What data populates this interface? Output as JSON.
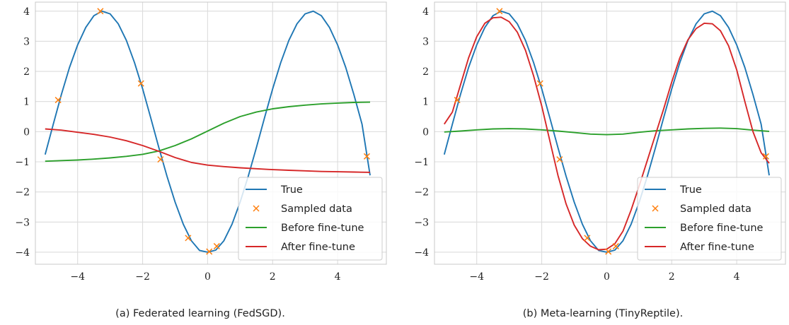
{
  "chart_data": [
    {
      "type": "line",
      "caption": "(a) Federated learning (FedSGD).",
      "xlim": [
        -5.3,
        5.5
      ],
      "ylim": [
        -4.4,
        4.3
      ],
      "xticks": [
        -4,
        -2,
        0,
        2,
        4
      ],
      "yticks": [
        -4,
        -3,
        -2,
        -1,
        0,
        1,
        2,
        3,
        4
      ],
      "xtick_labels": [
        "−4",
        "−2",
        "0",
        "2",
        "4"
      ],
      "ytick_labels": [
        "−4",
        "−3",
        "−2",
        "−1",
        "0",
        "1",
        "2",
        "3",
        "4"
      ],
      "grid": true,
      "legend_position": "lower-right",
      "series": [
        {
          "name": "True",
          "kind": "line",
          "color": "#1f77b4",
          "x": [
            -5.0,
            -4.75,
            -4.5,
            -4.25,
            -4.0,
            -3.75,
            -3.5,
            -3.25,
            -3.0,
            -2.75,
            -2.5,
            -2.25,
            -2.0,
            -1.75,
            -1.5,
            -1.25,
            -1.0,
            -0.75,
            -0.5,
            -0.25,
            0.0,
            0.25,
            0.5,
            0.75,
            1.0,
            1.25,
            1.5,
            1.75,
            2.0,
            2.25,
            2.5,
            2.75,
            3.0,
            3.25,
            3.5,
            3.75,
            4.0,
            4.25,
            4.5,
            4.75,
            5.0
          ],
          "y": [
            -0.76,
            0.25,
            1.23,
            2.13,
            2.88,
            3.46,
            3.85,
            4.0,
            3.91,
            3.58,
            3.03,
            2.29,
            1.42,
            0.46,
            -0.53,
            -1.48,
            -2.34,
            -3.07,
            -3.62,
            -3.94,
            -4.0,
            -3.93,
            -3.62,
            -3.07,
            -2.34,
            -1.48,
            -0.53,
            0.46,
            1.42,
            2.29,
            3.03,
            3.58,
            3.91,
            4.0,
            3.85,
            3.46,
            2.88,
            2.13,
            1.23,
            0.25,
            -1.45
          ]
        },
        {
          "name": "Sampled data",
          "kind": "markers",
          "color": "#ff7f0e",
          "x": [
            -4.6,
            -3.3,
            -2.05,
            -1.45,
            -0.6,
            0.05,
            0.28,
            4.9
          ],
          "y": [
            1.05,
            4.0,
            1.6,
            -0.92,
            -3.53,
            -3.98,
            -3.8,
            -0.82
          ]
        },
        {
          "name": "Before fine-tune",
          "kind": "line",
          "color": "#2ca02c",
          "x": [
            -5.0,
            -4.5,
            -4.0,
            -3.5,
            -3.0,
            -2.5,
            -2.0,
            -1.5,
            -1.0,
            -0.5,
            0.0,
            0.5,
            1.0,
            1.5,
            2.0,
            2.5,
            3.0,
            3.5,
            4.0,
            4.5,
            5.0
          ],
          "y": [
            -0.98,
            -0.96,
            -0.94,
            -0.91,
            -0.87,
            -0.82,
            -0.75,
            -0.64,
            -0.46,
            -0.24,
            0.02,
            0.28,
            0.5,
            0.65,
            0.76,
            0.83,
            0.88,
            0.92,
            0.95,
            0.97,
            0.98
          ]
        },
        {
          "name": "After fine-tune",
          "kind": "line",
          "color": "#d62728",
          "x": [
            -5.0,
            -4.5,
            -4.0,
            -3.5,
            -3.0,
            -2.5,
            -2.0,
            -1.5,
            -1.0,
            -0.5,
            0.0,
            0.5,
            1.0,
            1.5,
            2.0,
            2.5,
            3.0,
            3.5,
            4.0,
            4.5,
            5.0
          ],
          "y": [
            0.09,
            0.05,
            -0.02,
            -0.09,
            -0.18,
            -0.3,
            -0.46,
            -0.65,
            -0.86,
            -1.02,
            -1.11,
            -1.16,
            -1.2,
            -1.23,
            -1.26,
            -1.28,
            -1.3,
            -1.32,
            -1.33,
            -1.34,
            -1.35
          ]
        }
      ]
    },
    {
      "type": "line",
      "caption": "(b) Meta-learning (TinyReptile).",
      "xlim": [
        -5.3,
        5.5
      ],
      "ylim": [
        -4.4,
        4.3
      ],
      "xticks": [
        -4,
        -2,
        0,
        2,
        4
      ],
      "yticks": [
        -4,
        -3,
        -2,
        -1,
        0,
        1,
        2,
        3,
        4
      ],
      "xtick_labels": [
        "−4",
        "−2",
        "0",
        "2",
        "4"
      ],
      "ytick_labels": [
        "−4",
        "−3",
        "−2",
        "−1",
        "0",
        "1",
        "2",
        "3",
        "4"
      ],
      "grid": true,
      "legend_position": "lower-right",
      "series": [
        {
          "name": "True",
          "kind": "line",
          "color": "#1f77b4",
          "x": [
            -5.0,
            -4.75,
            -4.5,
            -4.25,
            -4.0,
            -3.75,
            -3.5,
            -3.25,
            -3.0,
            -2.75,
            -2.5,
            -2.25,
            -2.0,
            -1.75,
            -1.5,
            -1.25,
            -1.0,
            -0.75,
            -0.5,
            -0.25,
            0.0,
            0.25,
            0.5,
            0.75,
            1.0,
            1.25,
            1.5,
            1.75,
            2.0,
            2.25,
            2.5,
            2.75,
            3.0,
            3.25,
            3.5,
            3.75,
            4.0,
            4.25,
            4.5,
            4.75,
            5.0
          ],
          "y": [
            -0.76,
            0.25,
            1.23,
            2.13,
            2.88,
            3.46,
            3.85,
            4.0,
            3.91,
            3.58,
            3.03,
            2.29,
            1.42,
            0.46,
            -0.53,
            -1.48,
            -2.34,
            -3.07,
            -3.62,
            -3.94,
            -4.0,
            -3.93,
            -3.62,
            -3.07,
            -2.34,
            -1.48,
            -0.53,
            0.46,
            1.42,
            2.29,
            3.03,
            3.58,
            3.91,
            4.0,
            3.85,
            3.46,
            2.88,
            2.13,
            1.23,
            0.25,
            -1.45
          ]
        },
        {
          "name": "Sampled data",
          "kind": "markers",
          "color": "#ff7f0e",
          "x": [
            -4.6,
            -3.3,
            -2.05,
            -1.45,
            -0.6,
            0.05,
            0.28,
            4.9
          ],
          "y": [
            1.05,
            4.0,
            1.6,
            -0.92,
            -3.53,
            -3.98,
            -3.8,
            -0.82
          ]
        },
        {
          "name": "Before fine-tune",
          "kind": "line",
          "color": "#2ca02c",
          "x": [
            -5.0,
            -4.5,
            -4.0,
            -3.5,
            -3.0,
            -2.5,
            -2.0,
            -1.5,
            -1.0,
            -0.5,
            0.0,
            0.5,
            1.0,
            1.5,
            2.0,
            2.5,
            3.0,
            3.5,
            4.0,
            4.5,
            5.0
          ],
          "y": [
            -0.01,
            0.02,
            0.06,
            0.09,
            0.1,
            0.09,
            0.06,
            0.02,
            -0.03,
            -0.08,
            -0.1,
            -0.08,
            -0.02,
            0.03,
            0.06,
            0.09,
            0.11,
            0.12,
            0.1,
            0.05,
            0.01
          ]
        },
        {
          "name": "After fine-tune",
          "kind": "line",
          "color": "#d62728",
          "x": [
            -5.0,
            -4.75,
            -4.5,
            -4.25,
            -4.0,
            -3.75,
            -3.5,
            -3.25,
            -3.0,
            -2.75,
            -2.5,
            -2.25,
            -2.0,
            -1.75,
            -1.5,
            -1.25,
            -1.0,
            -0.75,
            -0.5,
            -0.25,
            0.0,
            0.25,
            0.5,
            0.75,
            1.0,
            1.25,
            1.5,
            1.75,
            2.0,
            2.25,
            2.5,
            2.75,
            3.0,
            3.25,
            3.5,
            3.75,
            4.0,
            4.25,
            4.5,
            4.75,
            5.0
          ],
          "y": [
            0.25,
            0.65,
            1.55,
            2.45,
            3.15,
            3.6,
            3.78,
            3.8,
            3.65,
            3.3,
            2.7,
            1.85,
            0.85,
            -0.3,
            -1.45,
            -2.4,
            -3.1,
            -3.55,
            -3.8,
            -3.92,
            -3.9,
            -3.72,
            -3.3,
            -2.6,
            -1.8,
            -0.95,
            -0.1,
            0.75,
            1.65,
            2.45,
            3.05,
            3.42,
            3.6,
            3.58,
            3.35,
            2.85,
            2.05,
            1.0,
            0.0,
            -0.7,
            -1.05
          ]
        }
      ]
    }
  ]
}
